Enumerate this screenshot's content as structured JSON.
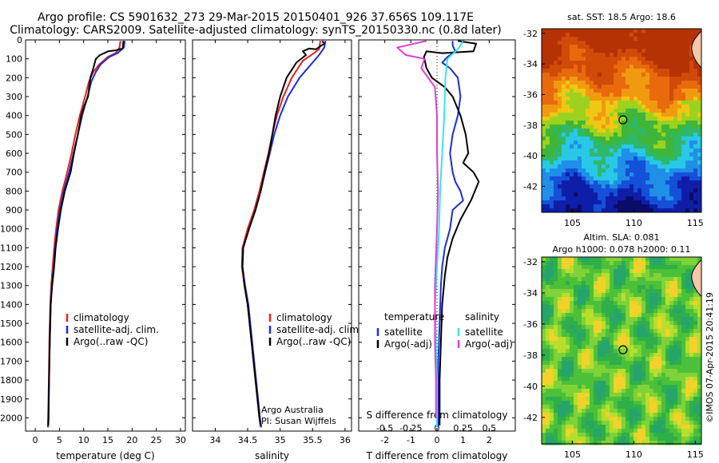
{
  "title_line1": "Argo profile: CS 5901632_273 29-Mar-2015 20150401_926 37.656S 109.117E",
  "title_line2": "Climatology: CARS2009. Satellite-adjusted climatology: synTS_20150330.nc (0.8d later)",
  "colors": {
    "climatology": "#e8201c",
    "satellite": "#1a2ee0",
    "argo": "#000000",
    "sal_satellite": "#36e4ec",
    "sal_argo": "#e040d8"
  },
  "chart_data": [
    {
      "type": "line",
      "xlabel": "temperature (deg C)",
      "ylabel": "",
      "xlim": [
        -2,
        31
      ],
      "ylim": [
        2070,
        0
      ],
      "xticks": [
        "0",
        "5",
        "10",
        "15",
        "20",
        "25",
        "30"
      ],
      "yticks": [
        "0",
        "100",
        "200",
        "300",
        "400",
        "500",
        "600",
        "700",
        "800",
        "900",
        "1000",
        "1100",
        "1200",
        "1300",
        "1400",
        "1500",
        "1600",
        "1700",
        "1800",
        "1900",
        "2000"
      ],
      "legend": [
        "climatology",
        "satellite-adj. clim.",
        "Argo(..raw -QC)"
      ],
      "series": [
        {
          "name": "climatology",
          "points": [
            [
              17.6,
              5
            ],
            [
              17.4,
              40
            ],
            [
              16.6,
              70
            ],
            [
              15,
              90
            ],
            [
              13.2,
              130
            ],
            [
              12,
              170
            ],
            [
              11.1,
              220
            ],
            [
              10.3,
              300
            ],
            [
              9.2,
              400
            ],
            [
              8.3,
              500
            ],
            [
              7.5,
              600
            ],
            [
              6.6,
              700
            ],
            [
              5.6,
              800
            ],
            [
              4.8,
              900
            ],
            [
              4.3,
              1000
            ],
            [
              3.9,
              1100
            ],
            [
              3.6,
              1200
            ],
            [
              3.3,
              1300
            ],
            [
              3.1,
              1400
            ],
            [
              2.9,
              1600
            ],
            [
              2.8,
              1800
            ],
            [
              2.65,
              2000
            ],
            [
              2.6,
              2050
            ]
          ]
        },
        {
          "name": "satellite-adj. clim.",
          "points": [
            [
              18.5,
              5
            ],
            [
              18.3,
              40
            ],
            [
              17,
              70
            ],
            [
              15.3,
              90
            ],
            [
              13.5,
              130
            ],
            [
              12.5,
              170
            ],
            [
              11.6,
              220
            ],
            [
              10.8,
              300
            ],
            [
              9.7,
              400
            ],
            [
              8.8,
              500
            ],
            [
              7.9,
              600
            ],
            [
              7,
              700
            ],
            [
              5.9,
              800
            ],
            [
              5.1,
              900
            ],
            [
              4.5,
              1000
            ],
            [
              4.1,
              1100
            ],
            [
              3.8,
              1200
            ],
            [
              3.4,
              1300
            ],
            [
              3.2,
              1400
            ],
            [
              3,
              1600
            ],
            [
              2.85,
              1800
            ],
            [
              2.7,
              2000
            ],
            [
              2.65,
              2050
            ]
          ]
        },
        {
          "name": "Argo(..raw -QC)",
          "points": [
            [
              18.2,
              5
            ],
            [
              18.1,
              45
            ],
            [
              16.7,
              55
            ],
            [
              15.1,
              60
            ],
            [
              13.4,
              80
            ],
            [
              12.5,
              100
            ],
            [
              12,
              150
            ],
            [
              11.4,
              200
            ],
            [
              10.9,
              300
            ],
            [
              10.1,
              350
            ],
            [
              9.5,
              400
            ],
            [
              8.8,
              500
            ],
            [
              8,
              600
            ],
            [
              7.3,
              700
            ],
            [
              6.1,
              800
            ],
            [
              5.3,
              900
            ],
            [
              4.7,
              1000
            ],
            [
              4.2,
              1100
            ],
            [
              3.9,
              1200
            ],
            [
              3.5,
              1300
            ],
            [
              3.2,
              1400
            ],
            [
              3.1,
              1500
            ],
            [
              3,
              1600
            ],
            [
              2.85,
              1800
            ],
            [
              2.75,
              2000
            ],
            [
              2.7,
              2040
            ]
          ]
        }
      ]
    },
    {
      "type": "line",
      "xlabel": "salinity",
      "xlim": [
        33.65,
        36.1
      ],
      "ylim": [
        2070,
        0
      ],
      "xticks": [
        "34",
        "34.5",
        "35",
        "35.5",
        "36"
      ],
      "legend": [
        "climatology",
        "satellite-adj. clim.",
        "Argo(..raw -QC)"
      ],
      "annotation": [
        "Argo Australia",
        "PI: Susan Wijffels"
      ],
      "series": [
        {
          "name": "climatology",
          "points": [
            [
              35.62,
              5
            ],
            [
              35.6,
              50
            ],
            [
              35.48,
              80
            ],
            [
              35.35,
              110
            ],
            [
              35.18,
              200
            ],
            [
              35.05,
              300
            ],
            [
              34.95,
              400
            ],
            [
              34.88,
              500
            ],
            [
              34.82,
              600
            ],
            [
              34.75,
              700
            ],
            [
              34.68,
              800
            ],
            [
              34.6,
              900
            ],
            [
              34.5,
              1000
            ],
            [
              34.42,
              1100
            ],
            [
              34.41,
              1200
            ],
            [
              34.45,
              1300
            ],
            [
              34.5,
              1400
            ],
            [
              34.56,
              1600
            ],
            [
              34.62,
              1800
            ],
            [
              34.68,
              2000
            ],
            [
              34.7,
              2050
            ]
          ]
        },
        {
          "name": "satellite-adj. clim.",
          "points": [
            [
              35.7,
              5
            ],
            [
              35.68,
              40
            ],
            [
              35.6,
              80
            ],
            [
              35.5,
              120
            ],
            [
              35.3,
              200
            ],
            [
              35.12,
              300
            ],
            [
              35,
              400
            ],
            [
              34.91,
              500
            ],
            [
              34.84,
              600
            ],
            [
              34.77,
              700
            ],
            [
              34.7,
              800
            ],
            [
              34.62,
              900
            ],
            [
              34.52,
              1000
            ],
            [
              34.43,
              1100
            ],
            [
              34.42,
              1200
            ],
            [
              34.46,
              1300
            ],
            [
              34.51,
              1400
            ],
            [
              34.57,
              1600
            ],
            [
              34.63,
              1800
            ],
            [
              34.69,
              2000
            ],
            [
              34.71,
              2050
            ]
          ]
        },
        {
          "name": "Argo(..raw -QC)",
          "points": [
            [
              35.65,
              5
            ],
            [
              35.68,
              20
            ],
            [
              35.55,
              50
            ],
            [
              35.45,
              45
            ],
            [
              35.35,
              60
            ],
            [
              35.4,
              80
            ],
            [
              35.25,
              120
            ],
            [
              35.1,
              200
            ],
            [
              35,
              300
            ],
            [
              34.93,
              400
            ],
            [
              34.88,
              500
            ],
            [
              34.83,
              600
            ],
            [
              34.76,
              700
            ],
            [
              34.7,
              800
            ],
            [
              34.62,
              900
            ],
            [
              34.52,
              1000
            ],
            [
              34.43,
              1100
            ],
            [
              34.42,
              1200
            ],
            [
              34.45,
              1300
            ],
            [
              34.5,
              1400
            ],
            [
              34.56,
              1600
            ],
            [
              34.62,
              1800
            ],
            [
              34.68,
              2000
            ],
            [
              34.7,
              2040
            ]
          ]
        }
      ]
    },
    {
      "type": "line",
      "xlabel": "T difference from climatology",
      "xlabel_top": "S difference from climatology",
      "xlim": [
        -3,
        3
      ],
      "ylim": [
        2070,
        0
      ],
      "xticks": [
        "-2",
        "-1",
        "0",
        "1",
        "2"
      ],
      "xticks_top": [
        "-0.5",
        "-0.25",
        "0",
        "0.25",
        "0.5"
      ],
      "legend_titles": [
        "temperature",
        "salinity"
      ],
      "legend": [
        "satellite",
        "Argo(-adj)",
        "satellite",
        "Argo(-adj)"
      ],
      "series": [
        {
          "name": "satellite",
          "points": [
            [
              0.6,
              5
            ],
            [
              0.6,
              30
            ],
            [
              0.7,
              60
            ],
            [
              0.4,
              90
            ],
            [
              0.2,
              120
            ],
            [
              0.5,
              150
            ],
            [
              0.8,
              200
            ],
            [
              0.9,
              300
            ],
            [
              0.8,
              400
            ],
            [
              0.6,
              500
            ],
            [
              0.5,
              600
            ],
            [
              0.6,
              700
            ],
            [
              0.7,
              750
            ],
            [
              0.9,
              800
            ],
            [
              1,
              850
            ],
            [
              0.6,
              900
            ],
            [
              0.5,
              1000
            ],
            [
              0.3,
              1100
            ],
            [
              0.2,
              1200
            ],
            [
              0.15,
              1300
            ],
            [
              0.1,
              1500
            ],
            [
              0.05,
              1700
            ],
            [
              0.05,
              1900
            ],
            [
              0.05,
              2050
            ]
          ]
        },
        {
          "name": "Argo(-adj)",
          "points": [
            [
              0.8,
              5
            ],
            [
              1.5,
              20
            ],
            [
              1.4,
              60
            ],
            [
              0.2,
              70
            ],
            [
              -0.4,
              60
            ],
            [
              -0.5,
              90
            ],
            [
              -0.4,
              150
            ],
            [
              -0.2,
              200
            ],
            [
              0.3,
              250
            ],
            [
              0.6,
              300
            ],
            [
              0.9,
              400
            ],
            [
              1.1,
              500
            ],
            [
              1.2,
              600
            ],
            [
              1,
              650
            ],
            [
              1.4,
              700
            ],
            [
              1.6,
              750
            ],
            [
              1.3,
              850
            ],
            [
              0.9,
              950
            ],
            [
              0.6,
              1050
            ],
            [
              0.4,
              1150
            ],
            [
              0.3,
              1250
            ],
            [
              0.2,
              1400
            ],
            [
              0.15,
              1600
            ],
            [
              0.1,
              1800
            ],
            [
              0.1,
              2000
            ],
            [
              0.1,
              2040
            ]
          ]
        },
        {
          "name": "sal_satellite",
          "points": [
            [
              0.25,
              5
            ],
            [
              0.2,
              50
            ],
            [
              0.1,
              100
            ],
            [
              0.08,
              200
            ],
            [
              0.07,
              400
            ],
            [
              0.05,
              600
            ],
            [
              0.03,
              800
            ],
            [
              0.02,
              1000
            ],
            [
              0,
              1200
            ],
            [
              -0.02,
              1400
            ],
            [
              -0.01,
              1600
            ],
            [
              0,
              1800
            ],
            [
              0,
              2050
            ]
          ]
        },
        {
          "name": "sal_argo",
          "points": [
            [
              -0.1,
              5
            ],
            [
              -0.38,
              40
            ],
            [
              -0.3,
              80
            ],
            [
              -0.12,
              100
            ],
            [
              -0.15,
              150
            ],
            [
              -0.02,
              250
            ],
            [
              0,
              400
            ],
            [
              0,
              600
            ],
            [
              0.01,
              800
            ],
            [
              0,
              1000
            ],
            [
              -0.02,
              1300
            ],
            [
              -0.02,
              1600
            ],
            [
              -0.01,
              1800
            ],
            [
              -0.01,
              2000
            ]
          ]
        }
      ]
    },
    {
      "type": "heatmap",
      "title": "sat. SST: 18.5 Argo: 18.6",
      "xlim": [
        102.5,
        115.5
      ],
      "ylim": [
        -43.7,
        -31.7
      ],
      "xticks": [
        "105",
        "110",
        "115"
      ],
      "yticks": [
        "-32",
        "-34",
        "-36",
        "-38",
        "-40",
        "-42"
      ],
      "argo_position": [
        109.117,
        -37.656
      ]
    },
    {
      "type": "heatmap",
      "title": "Altim. SLA: 0.081",
      "subtitle": "Argo h1000: 0.078 h2000: 0.11",
      "xlim": [
        102.5,
        115.5
      ],
      "ylim": [
        -43.7,
        -31.7
      ],
      "xticks": [
        "105",
        "110",
        "115"
      ],
      "yticks": [
        "-32",
        "-34",
        "-36",
        "-38",
        "-40",
        "-42"
      ],
      "argo_position": [
        109.117,
        -37.656
      ]
    }
  ],
  "credit": "©IMOS 07-Apr-2015 20:41:19"
}
